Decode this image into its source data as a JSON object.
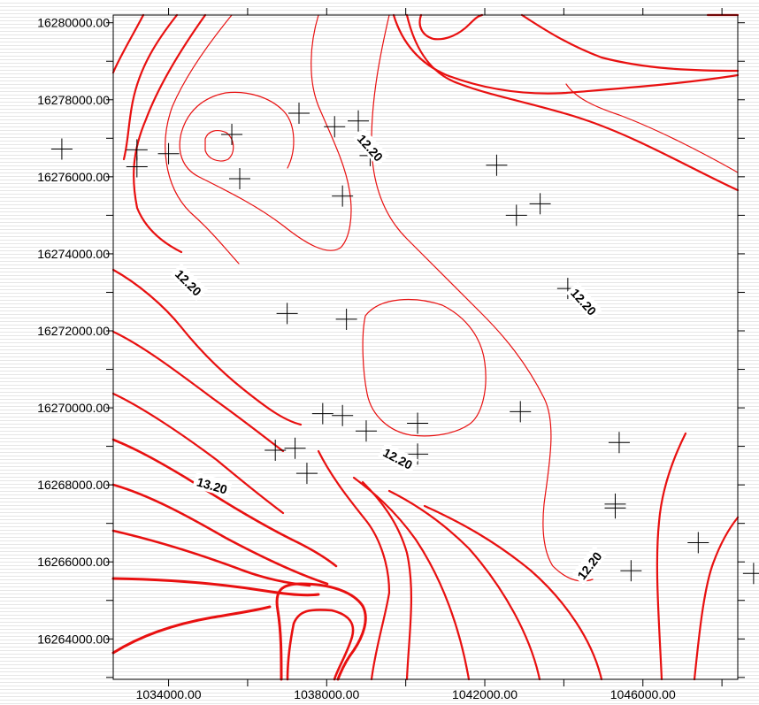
{
  "chart_data": {
    "type": "contour",
    "title": "",
    "xlabel": "",
    "ylabel": "",
    "xlim": [
      1032600,
      1048400
    ],
    "ylim": [
      16262950,
      16280200
    ],
    "grid": false,
    "line_color": "#e81010",
    "x_ticks": [
      {
        "value": 1034000,
        "label": "1034000.00"
      },
      {
        "value": 1038000,
        "label": "1038000.00"
      },
      {
        "value": 1042000,
        "label": "1042000.00"
      },
      {
        "value": 1046000,
        "label": "1046000.00"
      }
    ],
    "x_minor_ticks": [
      1036000,
      1040000,
      1044000,
      1048000
    ],
    "y_ticks": [
      {
        "value": 16280000,
        "label": "16280000.00"
      },
      {
        "value": 16278000,
        "label": "16278000.00"
      },
      {
        "value": 16276000,
        "label": "16276000.00"
      },
      {
        "value": 16274000,
        "label": "16274000.00"
      },
      {
        "value": 16272000,
        "label": "16272000.00"
      },
      {
        "value": 16270000,
        "label": "16270000.00"
      },
      {
        "value": 16268000,
        "label": "16268000.00"
      },
      {
        "value": 16266000,
        "label": "16266000.00"
      },
      {
        "value": 16264000,
        "label": "16264000.00"
      }
    ],
    "y_minor_ticks": [
      16279000,
      16277000,
      16275000,
      16273000,
      16271000,
      16269000,
      16267000,
      16265000,
      16263000
    ],
    "contour_labels": [
      {
        "text": "12.20",
        "x": 1039100,
        "y": 16276750,
        "angle": 48
      },
      {
        "text": "12.20",
        "x": 1034500,
        "y": 16273250,
        "angle": 45
      },
      {
        "text": "12.20",
        "x": 1044500,
        "y": 16272750,
        "angle": 48
      },
      {
        "text": "12.20",
        "x": 1039800,
        "y": 16268680,
        "angle": 28
      },
      {
        "text": "13.20",
        "x": 1035100,
        "y": 16267980,
        "angle": 16
      },
      {
        "text": "12.20",
        "x": 1044650,
        "y": 16265900,
        "angle": -52
      }
    ],
    "sample_points": [
      [
        1031300,
        16276720
      ],
      [
        1033200,
        16276700
      ],
      [
        1033200,
        16276260
      ],
      [
        1034000,
        16276600
      ],
      [
        1035600,
        16277100
      ],
      [
        1035800,
        16275950
      ],
      [
        1037300,
        16277650
      ],
      [
        1038200,
        16277300
      ],
      [
        1038800,
        16277450
      ],
      [
        1039100,
        16276550
      ],
      [
        1038400,
        16275500
      ],
      [
        1042300,
        16276300
      ],
      [
        1042800,
        16275000
      ],
      [
        1043400,
        16275300
      ],
      [
        1044100,
        16273100
      ],
      [
        1037000,
        16272450
      ],
      [
        1038500,
        16272300
      ],
      [
        1037900,
        16269850
      ],
      [
        1038400,
        16269800
      ],
      [
        1039000,
        16269400
      ],
      [
        1040300,
        16269600
      ],
      [
        1040300,
        16268800
      ],
      [
        1042900,
        16269900
      ],
      [
        1045400,
        16269100
      ],
      [
        1045300,
        16267500
      ],
      [
        1045300,
        16267400
      ],
      [
        1045700,
        16265770
      ],
      [
        1047400,
        16266500
      ],
      [
        1048800,
        16265700
      ],
      [
        1036700,
        16268900
      ],
      [
        1037200,
        16268950
      ],
      [
        1037500,
        16268300
      ]
    ]
  }
}
